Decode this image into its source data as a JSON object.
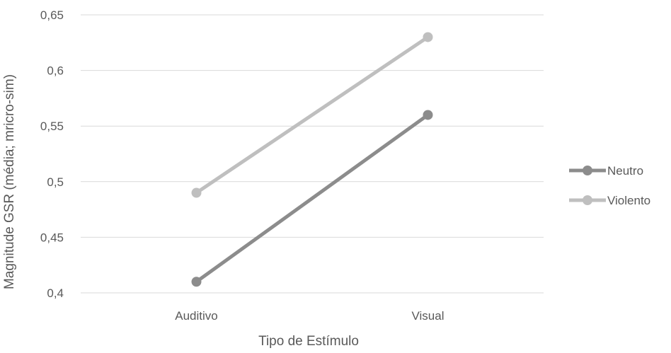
{
  "chart_data": {
    "type": "line",
    "title": "",
    "xlabel": "Tipo de Estímulo",
    "ylabel": "Magnitude GSR (média; mricro-sim)",
    "categories": [
      "Auditivo",
      "Visual"
    ],
    "ylim": [
      0.4,
      0.65
    ],
    "yticks": [
      0.4,
      0.45,
      0.5,
      0.55,
      0.6,
      0.65
    ],
    "ytick_labels": [
      "0,4",
      "0,45",
      "0,5",
      "0,55",
      "0,6",
      "0,65"
    ],
    "grid": true,
    "legend_position": "right",
    "series": [
      {
        "name": "Neutro",
        "values": [
          0.41,
          0.56
        ],
        "color": "#8c8c8c"
      },
      {
        "name": "Violento",
        "values": [
          0.49,
          0.63
        ],
        "color": "#bfbfbf"
      }
    ],
    "gridline_color": "#d9d9d9",
    "text_color": "#595959"
  }
}
